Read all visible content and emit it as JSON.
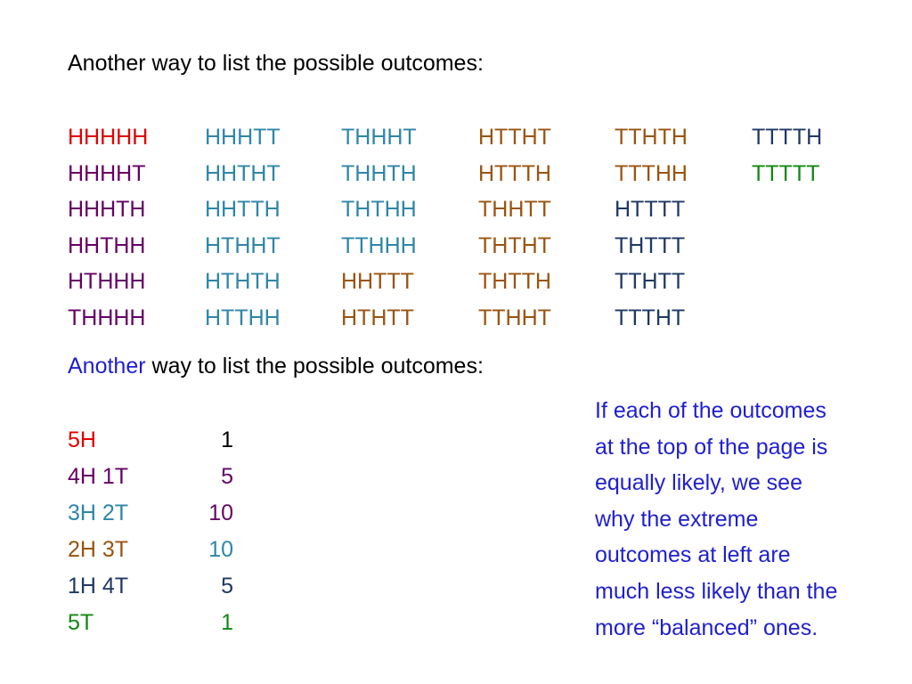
{
  "colors": {
    "black": "#000000",
    "red": "#e00000",
    "purple": "#660066",
    "teal": "#2e86a8",
    "brown": "#9a5410",
    "navy": "#1f3864",
    "green": "#118811",
    "blue": "#1f1fd0"
  },
  "heading1": "Another way to list the possible outcomes:",
  "heading2": {
    "word1": "Another",
    "rest": " way to list the possible outcomes:"
  },
  "outcomes": {
    "rows": [
      [
        {
          "text": "HHHHH",
          "color": "red"
        },
        {
          "text": "HHHTT",
          "color": "teal"
        },
        {
          "text": "THHHT",
          "color": "teal"
        },
        {
          "text": "HTTHT",
          "color": "brown"
        },
        {
          "text": "TTHTH",
          "color": "brown"
        },
        {
          "text": "TTTTH",
          "color": "navy"
        }
      ],
      [
        {
          "text": "HHHHT",
          "color": "purple"
        },
        {
          "text": "HHTHT",
          "color": "teal"
        },
        {
          "text": "THHTH",
          "color": "teal"
        },
        {
          "text": "HTTTH",
          "color": "brown"
        },
        {
          "text": "TTTHH",
          "color": "brown"
        },
        {
          "text": "TTTTT",
          "color": "green"
        }
      ],
      [
        {
          "text": "HHHTH",
          "color": "purple"
        },
        {
          "text": "HHTTH",
          "color": "teal"
        },
        {
          "text": "THTHH",
          "color": "teal"
        },
        {
          "text": "THHTT",
          "color": "brown"
        },
        {
          "text": "HTTTT",
          "color": "navy"
        }
      ],
      [
        {
          "text": "HHTHH",
          "color": "purple"
        },
        {
          "text": "HTHHT",
          "color": "teal"
        },
        {
          "text": "TTHHH",
          "color": "teal"
        },
        {
          "text": "THTHT",
          "color": "brown"
        },
        {
          "text": "THTTT",
          "color": "navy"
        }
      ],
      [
        {
          "text": "HTHHH",
          "color": "purple"
        },
        {
          "text": "HTHTH",
          "color": "teal"
        },
        {
          "text": "HHTTT",
          "color": "brown"
        },
        {
          "text": "THTTH",
          "color": "brown"
        },
        {
          "text": "TTHTT",
          "color": "navy"
        }
      ],
      [
        {
          "text": "THHHH",
          "color": "purple"
        },
        {
          "text": "HTTHH",
          "color": "teal"
        },
        {
          "text": "HTHTT",
          "color": "brown"
        },
        {
          "text": "TTHHT",
          "color": "brown"
        },
        {
          "text": "TTTHT",
          "color": "navy"
        }
      ]
    ]
  },
  "summary": {
    "rows": [
      {
        "label": "5H",
        "label_color": "red",
        "count": "1",
        "count_color": "black"
      },
      {
        "label": "4H 1T",
        "label_color": "purple",
        "count": "5",
        "count_color": "purple"
      },
      {
        "label": "3H 2T",
        "label_color": "teal",
        "count": "10",
        "count_color": "purple"
      },
      {
        "label": "2H 3T",
        "label_color": "brown",
        "count": "10",
        "count_color": "teal"
      },
      {
        "label": "1H 4T",
        "label_color": "navy",
        "count": "5",
        "count_color": "navy"
      },
      {
        "label": "5T",
        "label_color": "green",
        "count": "1",
        "count_color": "green"
      }
    ]
  },
  "note": {
    "lines": [
      "If each of the outcomes",
      "at the top of the page is",
      "equally likely,  we see",
      "why the extreme",
      "outcomes at left are",
      "much less likely than the",
      "more “balanced” ones."
    ]
  }
}
